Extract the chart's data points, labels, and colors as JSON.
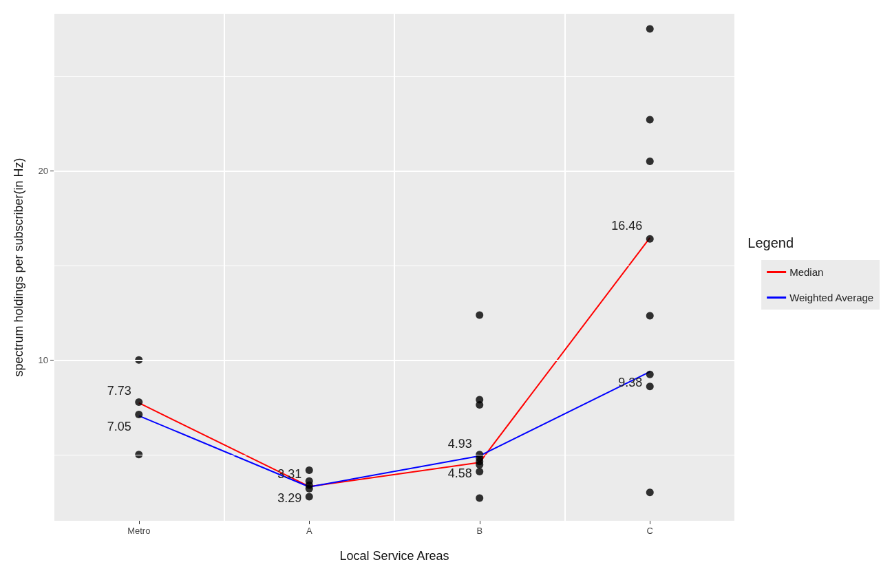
{
  "chart_data": {
    "type": "line",
    "xlabel": "Local Service Areas",
    "ylabel": "spectrum holdings per subscriber(in Hz)",
    "legend_title": "Legend",
    "categories": [
      "Metro",
      "A",
      "B",
      "C"
    ],
    "ylim": [
      1.5,
      28.3
    ],
    "yticks": [
      {
        "value": 5,
        "label": null
      },
      10,
      {
        "value": 15,
        "label": null
      },
      20,
      {
        "value": 25,
        "label": null
      }
    ],
    "grid": true,
    "legend": "right",
    "marker": "none",
    "series": [
      {
        "name": "Median",
        "color": "#ff0000",
        "values": [
          7.73,
          3.31,
          4.58,
          16.46
        ],
        "value_labels": [
          "7.73",
          "3.31",
          "4.58",
          "16.46"
        ]
      },
      {
        "name": "Weighted Average",
        "color": "#0000ff",
        "values": [
          7.05,
          3.29,
          4.93,
          9.38
        ],
        "value_labels": [
          "7.05",
          "3.29",
          "4.93",
          "9.38"
        ]
      },
      {
        "type": "scatter",
        "color": "#000000",
        "marker": "circle",
        "x": [
          "Metro",
          "Metro",
          "Metro",
          "Metro",
          "A",
          "A",
          "A",
          "A",
          "A",
          "B",
          "B",
          "B",
          "B",
          "B",
          "B",
          "B",
          "B",
          "B",
          "C",
          "C",
          "C",
          "C",
          "C",
          "C",
          "C",
          "C"
        ],
        "values": [
          10.0,
          7.77,
          7.12,
          5.0,
          4.17,
          3.6,
          3.38,
          3.2,
          2.77,
          12.37,
          7.9,
          7.63,
          5.0,
          4.82,
          4.64,
          4.46,
          4.1,
          2.7,
          27.5,
          22.7,
          20.5,
          16.4,
          12.34,
          9.24,
          8.6,
          3.0
        ]
      }
    ]
  }
}
